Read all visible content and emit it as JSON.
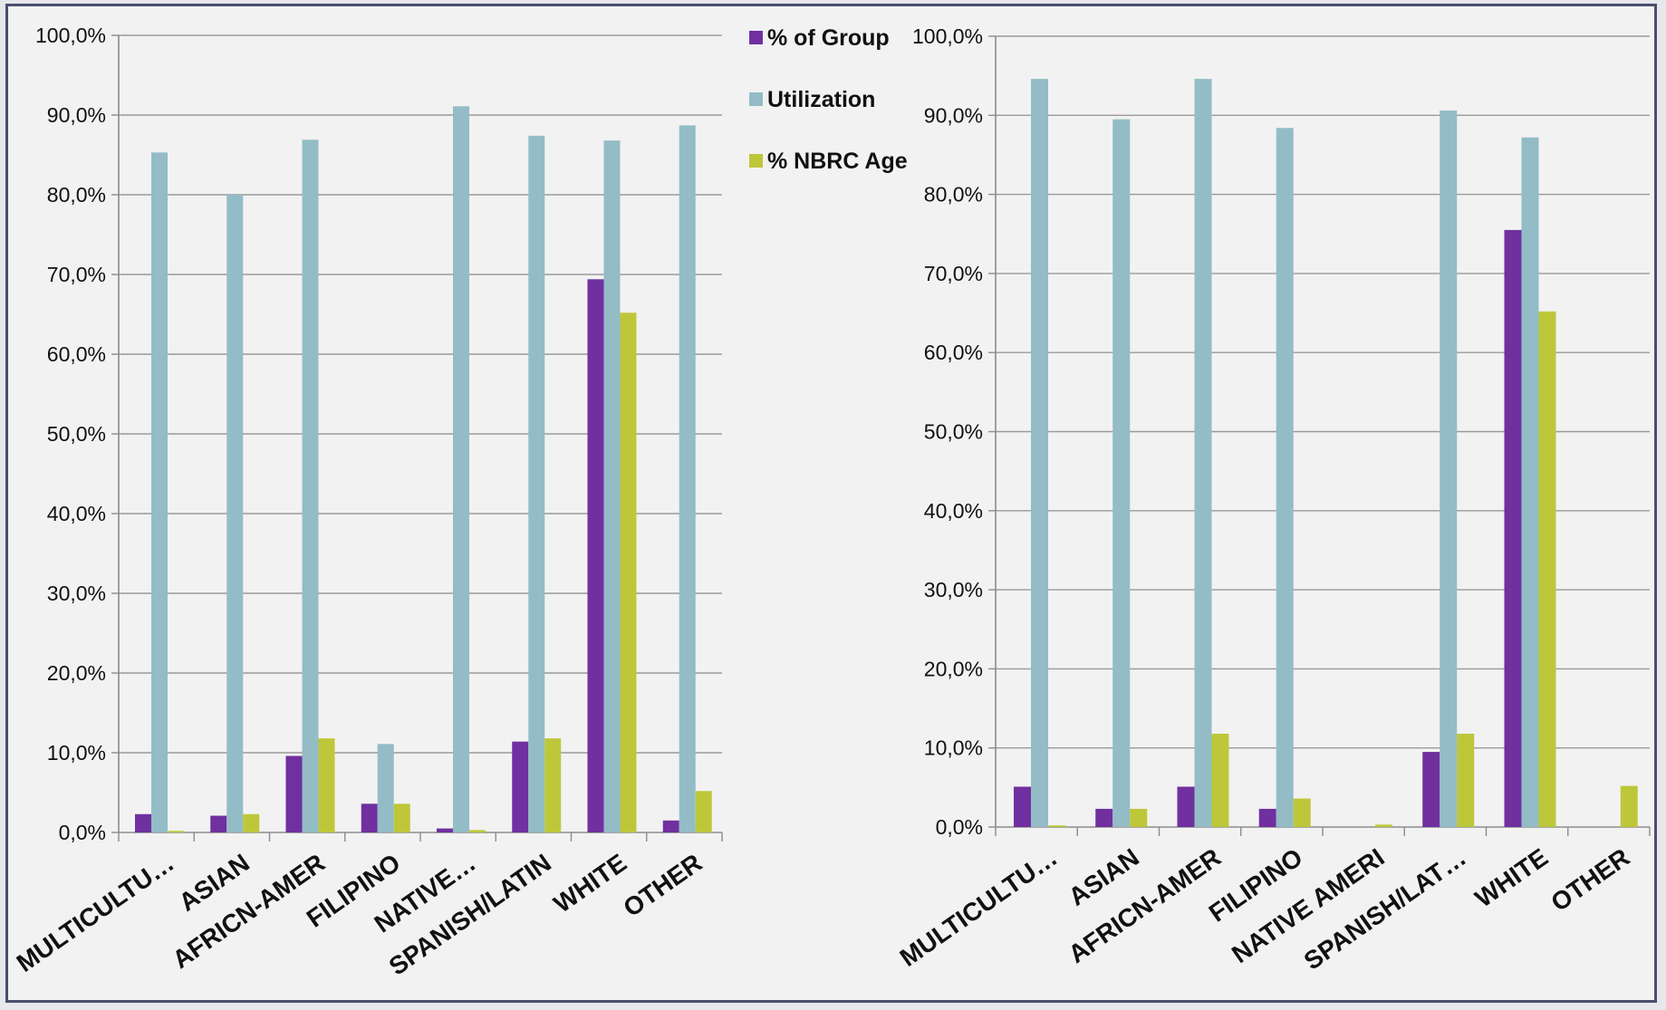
{
  "colors": {
    "pct_group": "#7030a0",
    "utilization": "#93bcc6",
    "nbrc_age": "#bec73a",
    "gridline": "#9a9a9a",
    "axis": "#8c8c8c"
  },
  "legend": {
    "items": [
      {
        "label": "% of Group",
        "color_key": "pct_group"
      },
      {
        "label": "Utilization",
        "color_key": "utilization"
      },
      {
        "label": "% NBRC Age",
        "color_key": "nbrc_age"
      }
    ]
  },
  "chart_data": [
    {
      "type": "bar",
      "title": "",
      "xlabel": "",
      "ylabel": "",
      "ylim": [
        0,
        100
      ],
      "yticks": [
        "0,0%",
        "10,0%",
        "20,0%",
        "30,0%",
        "40,0%",
        "50,0%",
        "60,0%",
        "70,0%",
        "80,0%",
        "90,0%",
        "100,0%"
      ],
      "categories": [
        "MULTICULTU…",
        "ASIAN",
        "AFRICN-AMER",
        "FILIPINO",
        "NATIVE…",
        "SPANISH/LATIN",
        "WHITE",
        "OTHER"
      ],
      "grid": true,
      "legend_placement": "top-right",
      "series": [
        {
          "name": "% of Group",
          "color_key": "pct_group",
          "values": [
            2.3,
            2.1,
            9.6,
            3.6,
            0.5,
            11.4,
            69.4,
            1.5
          ]
        },
        {
          "name": "Utilization",
          "color_key": "utilization",
          "values": [
            85.3,
            80.0,
            86.9,
            11.1,
            91.1,
            87.4,
            86.8,
            88.7
          ]
        },
        {
          "name": "% NBRC Age",
          "color_key": "nbrc_age",
          "values": [
            0.2,
            2.3,
            11.8,
            3.6,
            0.3,
            11.8,
            65.2,
            5.2
          ]
        }
      ]
    },
    {
      "type": "bar",
      "title": "",
      "xlabel": "",
      "ylabel": "",
      "ylim": [
        0,
        100
      ],
      "yticks": [
        "0,0%",
        "10,0%",
        "20,0%",
        "30,0%",
        "40,0%",
        "50,0%",
        "60,0%",
        "70,0%",
        "80,0%",
        "90,0%",
        "100,0%"
      ],
      "categories": [
        "MULTICULTU…",
        "ASIAN",
        "AFRICN-AMER",
        "FILIPINO",
        "NATIVE AMERI",
        "SPANISH/LAT…",
        "WHITE",
        "OTHER"
      ],
      "grid": true,
      "series": [
        {
          "name": "% of Group",
          "color_key": "pct_group",
          "values": [
            5.1,
            2.3,
            5.1,
            2.3,
            0.0,
            9.5,
            75.5,
            0.0
          ]
        },
        {
          "name": "Utilization",
          "color_key": "utilization",
          "values": [
            94.6,
            89.5,
            94.6,
            88.4,
            0.0,
            90.6,
            87.2,
            0.0
          ]
        },
        {
          "name": "% NBRC Age",
          "color_key": "nbrc_age",
          "values": [
            0.2,
            2.3,
            11.8,
            3.6,
            0.3,
            11.8,
            65.2,
            5.2
          ]
        }
      ]
    }
  ]
}
